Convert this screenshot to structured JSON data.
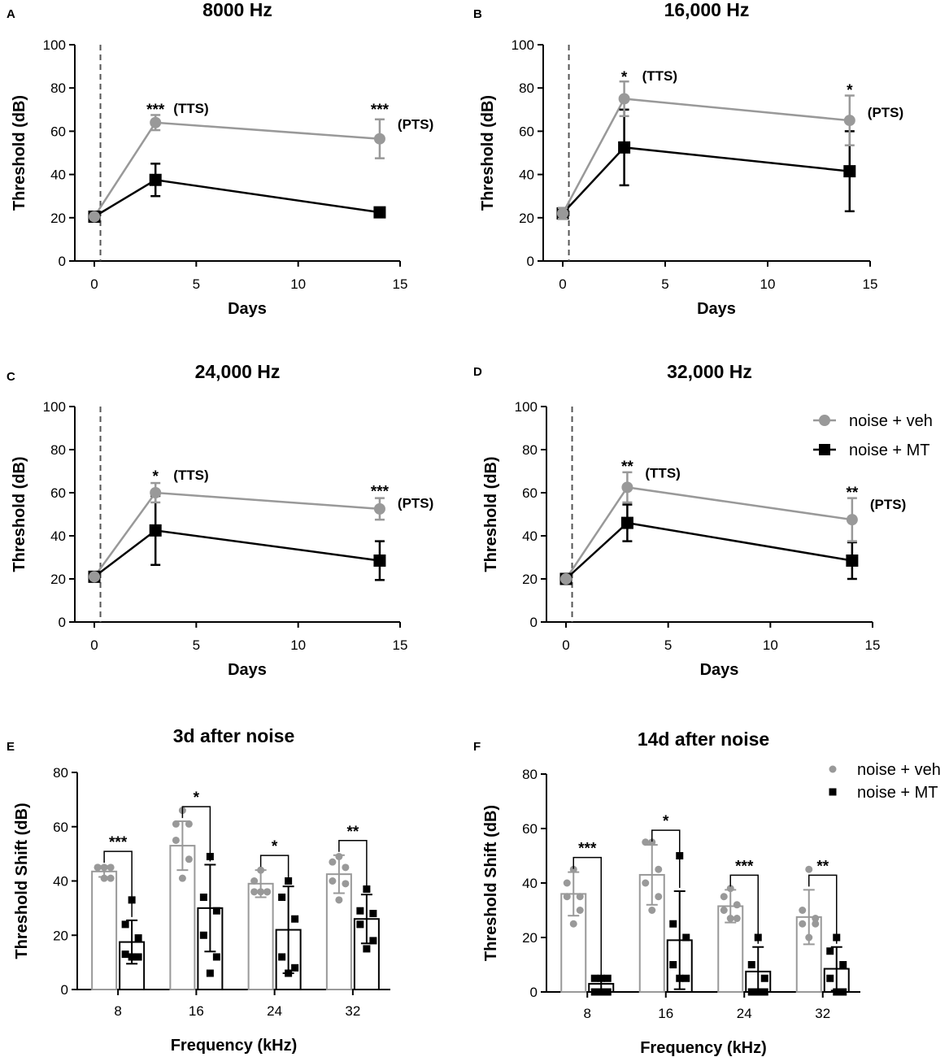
{
  "figure": {
    "legend_line": [
      {
        "name": "noise + veh",
        "color": "#999999",
        "marker": "circle"
      },
      {
        "name": "noise + MT",
        "color": "#000000",
        "marker": "square"
      }
    ],
    "legend_bar": [
      {
        "name": "noise + veh",
        "color": "#999999",
        "marker": "circle"
      },
      {
        "name": "noise + MT",
        "color": "#000000",
        "marker": "square"
      }
    ]
  },
  "chart_data": [
    {
      "panel": "A",
      "type": "line",
      "title": "8000 Hz",
      "xlabel": "Days",
      "ylabel": "Threshold (dB)",
      "xlim": [
        0,
        15
      ],
      "ylim": [
        0,
        100
      ],
      "xticks": [
        0,
        5,
        10,
        15
      ],
      "yticks": [
        0,
        20,
        40,
        60,
        80,
        100
      ],
      "noise_exposure_day": 0.3,
      "series": [
        {
          "name": "noise + veh",
          "color": "#999999",
          "marker": "circle",
          "x": [
            0,
            3,
            14
          ],
          "y": [
            20.5,
            64,
            56.5
          ],
          "err": [
            1,
            3.5,
            9
          ]
        },
        {
          "name": "noise + MT",
          "color": "#000000",
          "marker": "square",
          "x": [
            0,
            3,
            14
          ],
          "y": [
            20.5,
            37.5,
            22.5
          ],
          "err": [
            1,
            7.5,
            1
          ]
        }
      ],
      "annotations": [
        {
          "x": 3,
          "text": "***",
          "y": 68.5
        },
        {
          "x": 3,
          "text": "(TTS)",
          "y": 68.5
        },
        {
          "x": 14,
          "text": "***",
          "y": 68.5
        },
        {
          "x": 14,
          "text": "(PTS)",
          "y": 61
        }
      ]
    },
    {
      "panel": "B",
      "type": "line",
      "title": "16,000 Hz",
      "xlabel": "Days",
      "ylabel": "Threshold (dB)",
      "xlim": [
        0,
        15
      ],
      "ylim": [
        0,
        100
      ],
      "xticks": [
        0,
        5,
        10,
        15
      ],
      "yticks": [
        0,
        20,
        40,
        60,
        80,
        100
      ],
      "noise_exposure_day": 0.3,
      "series": [
        {
          "name": "noise + veh",
          "color": "#999999",
          "marker": "circle",
          "x": [
            0,
            3,
            14
          ],
          "y": [
            22,
            75,
            65
          ],
          "err": [
            2.5,
            8,
            11.5
          ]
        },
        {
          "name": "noise + MT",
          "color": "#000000",
          "marker": "square",
          "x": [
            0,
            3,
            14
          ],
          "y": [
            22,
            52.5,
            41.5
          ],
          "err": [
            2.5,
            17.5,
            18.5
          ]
        }
      ],
      "annotations": [
        {
          "x": 3,
          "text": "*",
          "y": 83.5
        },
        {
          "x": 3,
          "text": "(TTS)",
          "y": 83.5
        },
        {
          "x": 14,
          "text": "*",
          "y": 77.5
        },
        {
          "x": 14,
          "text": "(PTS)",
          "y": 66.5
        }
      ]
    },
    {
      "panel": "C",
      "type": "line",
      "title": "24,000 Hz",
      "xlabel": "Days",
      "ylabel": "Threshold (dB)",
      "xlim": [
        0,
        15
      ],
      "ylim": [
        0,
        100
      ],
      "xticks": [
        0,
        5,
        10,
        15
      ],
      "yticks": [
        0,
        20,
        40,
        60,
        80,
        100
      ],
      "noise_exposure_day": 0.3,
      "series": [
        {
          "name": "noise + veh",
          "color": "#999999",
          "marker": "circle",
          "x": [
            0,
            3,
            14
          ],
          "y": [
            21,
            60,
            52.5
          ],
          "err": [
            1,
            4.5,
            5
          ]
        },
        {
          "name": "noise + MT",
          "color": "#000000",
          "marker": "square",
          "x": [
            0,
            3,
            14
          ],
          "y": [
            21,
            42.5,
            28.5
          ],
          "err": [
            1,
            16,
            9
          ]
        }
      ],
      "annotations": [
        {
          "x": 3,
          "text": "*",
          "y": 66
        },
        {
          "x": 3,
          "text": "(TTS)",
          "y": 66
        },
        {
          "x": 14,
          "text": "***",
          "y": 59
        },
        {
          "x": 14,
          "text": "(PTS)",
          "y": 53
        }
      ]
    },
    {
      "panel": "D",
      "type": "line",
      "title": "32,000 Hz",
      "xlabel": "Days",
      "ylabel": "Threshold (dB)",
      "xlim": [
        0,
        15
      ],
      "ylim": [
        0,
        100
      ],
      "xticks": [
        0,
        5,
        10,
        15
      ],
      "yticks": [
        0,
        20,
        40,
        60,
        80,
        100
      ],
      "noise_exposure_day": 0.3,
      "series": [
        {
          "name": "noise + veh",
          "color": "#999999",
          "marker": "circle",
          "x": [
            0,
            3,
            14
          ],
          "y": [
            20,
            62.5,
            47.5
          ],
          "err": [
            1,
            7,
            10
          ]
        },
        {
          "name": "noise + MT",
          "color": "#000000",
          "marker": "square",
          "x": [
            0,
            3,
            14
          ],
          "y": [
            20,
            46,
            28.5
          ],
          "err": [
            1,
            8.5,
            8.5
          ]
        }
      ],
      "annotations": [
        {
          "x": 3,
          "text": "**",
          "y": 70.5
        },
        {
          "x": 3,
          "text": "(TTS)",
          "y": 67
        },
        {
          "x": 14,
          "text": "**",
          "y": 58.5
        },
        {
          "x": 14,
          "text": "(PTS)",
          "y": 52.5
        }
      ]
    },
    {
      "panel": "E",
      "type": "bar",
      "title": "3d after noise",
      "xlabel": "Frequency (kHz)",
      "ylabel": "Threshold Shift (dB)",
      "ylim": [
        0,
        80
      ],
      "yticks": [
        0,
        20,
        40,
        60,
        80
      ],
      "categories": [
        "8",
        "16",
        "24",
        "32"
      ],
      "series": [
        {
          "name": "noise + veh",
          "color": "#999999",
          "values": [
            43.5,
            53,
            39,
            42.5
          ],
          "err": [
            2,
            9,
            5,
            7
          ],
          "points": [
            [
              45,
              45,
              45,
              45,
              41,
              41
            ],
            [
              66,
              61,
              61,
              55,
              48,
              41
            ],
            [
              44,
              40,
              36,
              36,
              36,
              36
            ],
            [
              49,
              47,
              45,
              40,
              39,
              33
            ]
          ]
        },
        {
          "name": "noise + MT",
          "color": "#000000",
          "values": [
            17.5,
            30,
            22,
            26
          ],
          "err": [
            8,
            16,
            16,
            9
          ],
          "points": [
            [
              33,
              24,
              19,
              13,
              12,
              12
            ],
            [
              49,
              34,
              29,
              20,
              12,
              6
            ],
            [
              40,
              34,
              26,
              12,
              8,
              6
            ],
            [
              37,
              29,
              28,
              24,
              18,
              15
            ]
          ]
        }
      ],
      "significance": [
        "***",
        "*",
        "*",
        "**"
      ]
    },
    {
      "panel": "F",
      "type": "bar",
      "title": "14d after noise",
      "xlabel": "Frequency (kHz)",
      "ylabel": "Threshold Shift (dB)",
      "ylim": [
        0,
        80
      ],
      "yticks": [
        0,
        20,
        40,
        60,
        80
      ],
      "categories": [
        "8",
        "16",
        "24",
        "32"
      ],
      "series": [
        {
          "name": "noise + veh",
          "color": "#999999",
          "values": [
            36,
            43,
            31.5,
            27.5
          ],
          "err": [
            8,
            11,
            6,
            10
          ],
          "points": [
            [
              45,
              40,
              35,
              35,
              30,
              25
            ],
            [
              55,
              55,
              45,
              40,
              35,
              30
            ],
            [
              38,
              35,
              32,
              30,
              27,
              27
            ],
            [
              45,
              30,
              27,
              25,
              25,
              20
            ]
          ]
        },
        {
          "name": "noise + MT",
          "color": "#000000",
          "values": [
            3,
            19,
            7.5,
            8.5
          ],
          "err": [
            2,
            18,
            9,
            8
          ],
          "points": [
            [
              5,
              5,
              5,
              0,
              0,
              0
            ],
            [
              50,
              25,
              20,
              10,
              5,
              5
            ],
            [
              20,
              10,
              5,
              0,
              0,
              0
            ],
            [
              20,
              15,
              10,
              5,
              0,
              0
            ]
          ]
        }
      ],
      "significance": [
        "***",
        "*",
        "***",
        "**"
      ]
    }
  ]
}
